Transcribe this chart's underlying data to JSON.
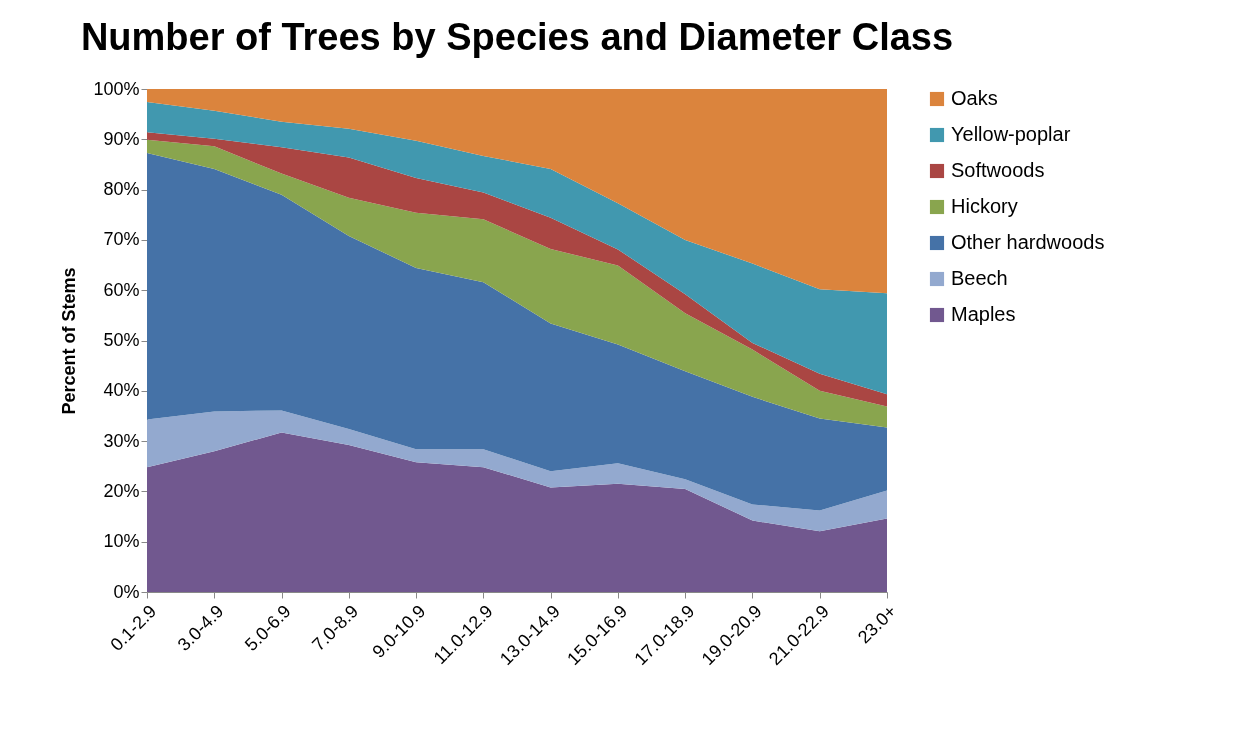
{
  "chart_data": {
    "type": "area",
    "title": "Number of Trees by Species and Diameter Class",
    "ylabel": "Percent of Stems",
    "stacked": true,
    "legend": "right",
    "grid": false,
    "categories": [
      "0.1-2.9",
      "3.0-4.9",
      "5.0-6.9",
      "7.0-8.9",
      "9.0-10.9",
      "11.0-12.9",
      "13.0-14.9",
      "15.0-16.9",
      "17.0-18.9",
      "19.0-20.9",
      "21.0-22.9",
      "23.0+"
    ],
    "ylim": [
      0,
      100
    ],
    "yticks": [
      {
        "value": 0,
        "label": "0%"
      },
      {
        "value": 10,
        "label": "10%"
      },
      {
        "value": 20,
        "label": "20%"
      },
      {
        "value": 30,
        "label": "30%"
      },
      {
        "value": 40,
        "label": "40%"
      },
      {
        "value": 50,
        "label": "50%"
      },
      {
        "value": 60,
        "label": "60%"
      },
      {
        "value": 70,
        "label": "70%"
      },
      {
        "value": 80,
        "label": "80%"
      },
      {
        "value": 90,
        "label": "90%"
      },
      {
        "value": 100,
        "label": "100%"
      }
    ],
    "series": [
      {
        "name": "Maples",
        "color": "#71588f",
        "values": [
          24.8,
          28.0,
          31.7,
          29.2,
          25.8,
          24.8,
          20.8,
          21.5,
          20.5,
          14.2,
          12.1,
          14.6
        ]
      },
      {
        "name": "Beech",
        "color": "#93a9cf",
        "values": [
          9.5,
          7.9,
          4.4,
          3.2,
          2.6,
          3.6,
          3.2,
          4.1,
          1.9,
          3.2,
          4.1,
          5.6
        ]
      },
      {
        "name": "Other hardwoods",
        "color": "#4572a7",
        "values": [
          53.0,
          48.2,
          42.9,
          38.4,
          36.0,
          33.2,
          29.4,
          23.6,
          21.5,
          21.4,
          18.3,
          12.5
        ]
      },
      {
        "name": "Hickory",
        "color": "#89a54e",
        "values": [
          2.6,
          4.5,
          4.2,
          7.6,
          11.0,
          12.5,
          14.8,
          15.7,
          11.5,
          9.4,
          5.5,
          4.2
        ]
      },
      {
        "name": "Softwoods",
        "color": "#aa4643",
        "values": [
          1.5,
          1.5,
          5.2,
          8.0,
          6.9,
          5.3,
          6.2,
          3.2,
          3.8,
          1.3,
          3.4,
          2.4
        ]
      },
      {
        "name": "Yellow-poplar",
        "color": "#4198af",
        "values": [
          6.0,
          5.6,
          5.1,
          5.7,
          7.4,
          7.3,
          9.7,
          9.2,
          10.8,
          15.8,
          16.8,
          20.1
        ]
      },
      {
        "name": "Oaks",
        "color": "#db843d",
        "values": [
          2.6,
          4.3,
          6.5,
          7.9,
          10.3,
          13.3,
          15.9,
          22.7,
          30.0,
          34.7,
          39.8,
          40.6
        ]
      }
    ]
  }
}
